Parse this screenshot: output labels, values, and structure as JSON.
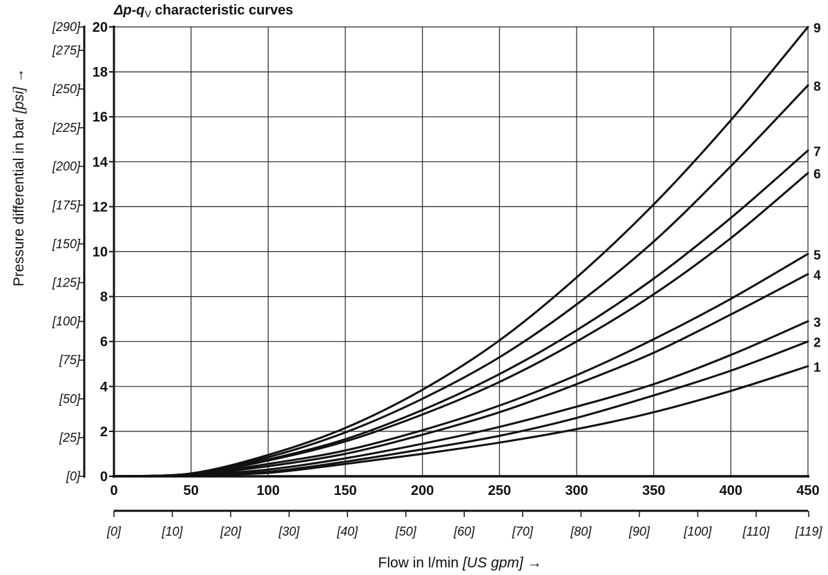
{
  "chart_data": {
    "type": "line",
    "title_prefix": "Δp-q",
    "title_sub": "V",
    "title_suffix": " characteristic curves",
    "ylabel": "Pressure differential in bar ",
    "ylabel_unit": "[psi]",
    "ylabel_arrow": " →",
    "xlabel": "Flow in l/min ",
    "xlabel_unit": "[US gpm]",
    "xlabel_arrow": " →",
    "xlim": [
      0,
      450
    ],
    "ylim": [
      0,
      20
    ],
    "grid": true,
    "x_ticks": [
      0,
      50,
      100,
      150,
      200,
      250,
      300,
      350,
      400,
      450
    ],
    "y_ticks": [
      0,
      2,
      4,
      6,
      8,
      10,
      12,
      14,
      16,
      18,
      20
    ],
    "psi_ticks": [
      {
        "label": "[0]",
        "value": 0
      },
      {
        "label": "[25]",
        "value": 25
      },
      {
        "label": "[50]",
        "value": 50
      },
      {
        "label": "[75]",
        "value": 75
      },
      {
        "label": "[100]",
        "value": 100
      },
      {
        "label": "[125]",
        "value": 125
      },
      {
        "label": "[150]",
        "value": 150
      },
      {
        "label": "[175]",
        "value": 175
      },
      {
        "label": "[200]",
        "value": 200
      },
      {
        "label": "[225]",
        "value": 225
      },
      {
        "label": "[250]",
        "value": 250
      },
      {
        "label": "[275]",
        "value": 275
      },
      {
        "label": "[290]",
        "value": 290
      }
    ],
    "gpm_ticks": [
      {
        "label": "[0]",
        "value": 0
      },
      {
        "label": "[10]",
        "value": 10
      },
      {
        "label": "[20]",
        "value": 20
      },
      {
        "label": "[30]",
        "value": 30
      },
      {
        "label": "[40]",
        "value": 40
      },
      {
        "label": "[50]",
        "value": 50
      },
      {
        "label": "[60]",
        "value": 60
      },
      {
        "label": "[70]",
        "value": 70
      },
      {
        "label": "[80]",
        "value": 80
      },
      {
        "label": "[90]",
        "value": 90
      },
      {
        "label": "[100]",
        "value": 100
      },
      {
        "label": "[110]",
        "value": 110
      },
      {
        "label": "[119]",
        "value": 119
      }
    ],
    "series": [
      {
        "name": "1",
        "x": [
          0,
          50,
          100,
          150,
          200,
          250,
          300,
          350,
          400,
          450
        ],
        "values": [
          0,
          0.05,
          0.15,
          0.55,
          1.0,
          1.5,
          2.1,
          2.85,
          3.8,
          4.9
        ]
      },
      {
        "name": "2",
        "x": [
          0,
          50,
          100,
          150,
          200,
          250,
          300,
          350,
          400,
          450
        ],
        "values": [
          0,
          0.05,
          0.2,
          0.65,
          1.2,
          1.8,
          2.6,
          3.6,
          4.7,
          6.0
        ]
      },
      {
        "name": "3",
        "x": [
          0,
          50,
          100,
          150,
          200,
          250,
          300,
          350,
          400,
          450
        ],
        "values": [
          0,
          0.06,
          0.3,
          0.8,
          1.45,
          2.2,
          3.1,
          4.1,
          5.4,
          6.9
        ]
      },
      {
        "name": "4",
        "x": [
          0,
          50,
          100,
          150,
          200,
          250,
          300,
          350,
          400,
          450
        ],
        "values": [
          0,
          0.07,
          0.45,
          1.0,
          1.85,
          2.85,
          4.1,
          5.5,
          7.2,
          9.0
        ]
      },
      {
        "name": "5",
        "x": [
          0,
          50,
          100,
          150,
          200,
          250,
          300,
          350,
          400,
          450
        ],
        "values": [
          0,
          0.08,
          0.55,
          1.15,
          2.05,
          3.15,
          4.5,
          6.1,
          7.9,
          9.9
        ]
      },
      {
        "name": "6",
        "x": [
          0,
          50,
          100,
          150,
          200,
          250,
          300,
          350,
          400,
          450
        ],
        "values": [
          0,
          0.1,
          0.7,
          1.55,
          2.75,
          4.2,
          6.0,
          8.1,
          10.6,
          13.5
        ]
      },
      {
        "name": "7",
        "x": [
          0,
          50,
          100,
          150,
          200,
          250,
          300,
          350,
          400,
          450
        ],
        "values": [
          0,
          0.11,
          0.75,
          1.65,
          2.95,
          4.55,
          6.5,
          8.8,
          11.5,
          14.5
        ]
      },
      {
        "name": "8",
        "x": [
          0,
          50,
          100,
          150,
          200,
          250,
          300,
          350,
          400,
          450
        ],
        "values": [
          0,
          0.12,
          0.85,
          1.95,
          3.45,
          5.3,
          7.65,
          10.45,
          13.8,
          17.4
        ]
      },
      {
        "name": "9",
        "x": [
          0,
          50,
          100,
          150,
          200,
          250,
          300,
          350,
          400,
          450
        ],
        "values": [
          0,
          0.13,
          0.95,
          2.15,
          3.85,
          6.05,
          8.85,
          12.1,
          15.85,
          20.0
        ]
      }
    ]
  }
}
